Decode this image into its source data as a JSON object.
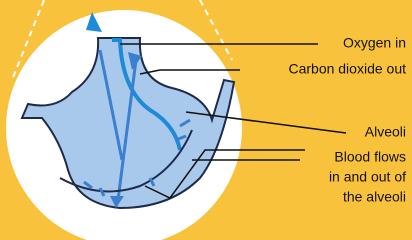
{
  "labels": [
    "Oxygen in",
    "Carbon dioxide out",
    "Alveoli",
    [
      "Blood flows",
      "in and out of",
      "the alveoli"
    ]
  ]
}
